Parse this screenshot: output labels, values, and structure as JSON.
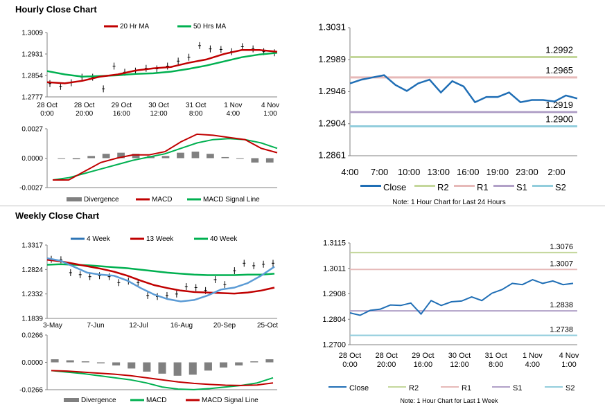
{
  "sections": {
    "hourly_title": "Hourly Close Chart",
    "weekly_title": "Weekly Close Chart"
  },
  "colors": {
    "ma_red": "#c00000",
    "ma_green": "#00b050",
    "close_blue": "#1f6eb5",
    "r2": "#c4d79b",
    "r1": "#e6b9b8",
    "s1": "#b1a0c7",
    "s2": "#92cddc",
    "divergence": "#808080"
  },
  "chart_data": [
    {
      "id": "hourly_price",
      "type": "line",
      "legend": [
        "20 Hr MA",
        "50 Hrs MA"
      ],
      "yticks": [
        "1.3009",
        "1.2931",
        "1.2854",
        "1.2777"
      ],
      "ylim": [
        1.2777,
        1.3009
      ],
      "xticks": [
        [
          "28 Oct",
          "0:00"
        ],
        [
          "28 Oct",
          "20:00"
        ],
        [
          "29 Oct",
          "16:00"
        ],
        [
          "30 Oct",
          "12:00"
        ],
        [
          "31 Oct",
          "8:00"
        ],
        [
          "1 Nov",
          "4:00"
        ],
        [
          "4 Nov",
          "1:00"
        ]
      ],
      "series": [
        {
          "name": "20 Hr MA",
          "values": [
            1.283,
            1.2826,
            1.2835,
            1.285,
            1.2858,
            1.2872,
            1.288,
            1.2885,
            1.29,
            1.2912,
            1.2932,
            1.2946,
            1.2946,
            1.294
          ]
        },
        {
          "name": "50 Hrs MA",
          "values": [
            1.287,
            1.2858,
            1.285,
            1.2852,
            1.2855,
            1.286,
            1.2862,
            1.2868,
            1.2878,
            1.289,
            1.2905,
            1.292,
            1.293,
            1.2936
          ]
        }
      ],
      "price": [
        1.2825,
        1.2815,
        1.2828,
        1.2848,
        1.2848,
        1.2806,
        1.2888,
        1.2866,
        1.287,
        1.288,
        1.2878,
        1.2888,
        1.2906,
        1.292,
        1.2962,
        1.295,
        1.2948,
        1.294,
        1.2958,
        1.295,
        1.294,
        1.2936
      ]
    },
    {
      "id": "hourly_macd",
      "type": "line",
      "legend": [
        "Divergence",
        "MACD",
        "MACD Signal Line"
      ],
      "yticks": [
        "0.0027",
        "0.0000",
        "-0.0027"
      ],
      "ylim": [
        -0.0027,
        0.0027
      ],
      "series": [
        {
          "name": "MACD",
          "values": [
            -0.002,
            -0.002,
            -0.0012,
            -0.0004,
            0.0,
            0.0003,
            0.0003,
            0.0006,
            0.0015,
            0.0022,
            0.0021,
            0.0019,
            0.0017,
            0.0009,
            0.0005
          ]
        },
        {
          "name": "MACD Signal Line",
          "values": [
            -0.002,
            -0.0018,
            -0.0014,
            -0.001,
            -0.0006,
            -0.0002,
            0.0001,
            0.0004,
            0.0009,
            0.0014,
            0.0017,
            0.0018,
            0.0017,
            0.0014,
            0.0009
          ]
        },
        {
          "name": "Divergence",
          "values": [
            0.0,
            -0.0001,
            0.0002,
            0.0004,
            0.0005,
            0.0004,
            0.0002,
            0.0002,
            0.0005,
            0.0006,
            0.0004,
            0.0001,
            0.0,
            -0.0004,
            -0.0004
          ]
        }
      ]
    },
    {
      "id": "hourly_levels",
      "type": "line",
      "yticks": [
        "1.3031",
        "1.2989",
        "1.2946",
        "1.2904",
        "1.2861"
      ],
      "ylim": [
        1.2861,
        1.3031
      ],
      "xticks": [
        "4:00",
        "7:00",
        "10:00",
        "13:00",
        "16:00",
        "19:00",
        "23:00",
        "2:00"
      ],
      "levels": [
        {
          "name": "R2",
          "value": 1.2992,
          "label": "1.2992"
        },
        {
          "name": "R1",
          "value": 1.2965,
          "label": "1.2965"
        },
        {
          "name": "S1",
          "value": 1.2919,
          "label": "1.2919"
        },
        {
          "name": "S2",
          "value": 1.29,
          "label": "1.2900"
        }
      ],
      "series": [
        {
          "name": "Close",
          "values": [
            1.2957,
            1.2962,
            1.2965,
            1.2968,
            1.2955,
            1.2947,
            1.2957,
            1.2962,
            1.2945,
            1.296,
            1.2953,
            1.2932,
            1.2939,
            1.2939,
            1.2945,
            1.2932,
            1.2935,
            1.2935,
            1.2933,
            1.2941,
            1.2937
          ]
        }
      ],
      "legend": [
        "Close",
        "R2",
        "R1",
        "S1",
        "S2"
      ],
      "note": "Note: 1 Hour Chart for Last 24 Hours"
    },
    {
      "id": "weekly_price",
      "type": "line",
      "legend": [
        "4 Week",
        "13 Week",
        "40 Week"
      ],
      "yticks": [
        "1.3317",
        "1.2824",
        "1.2332",
        "1.1839"
      ],
      "ylim": [
        1.1839,
        1.3317
      ],
      "xticks": [
        "3-May",
        "7-Jun",
        "12-Jul",
        "16-Aug",
        "20-Sep",
        "25-Oct"
      ],
      "series": [
        {
          "name": "4 Week",
          "values": [
            1.305,
            1.3,
            1.288,
            1.276,
            1.272,
            1.27,
            1.26,
            1.245,
            1.232,
            1.223,
            1.218,
            1.221,
            1.23,
            1.242,
            1.246,
            1.255,
            1.27,
            1.288
          ]
        },
        {
          "name": "13 Week",
          "values": [
            1.302,
            1.299,
            1.294,
            1.289,
            1.284,
            1.278,
            1.27,
            1.26,
            1.251,
            1.245,
            1.24,
            1.237,
            1.236,
            1.235,
            1.234,
            1.236,
            1.24,
            1.246
          ]
        },
        {
          "name": "40 Week",
          "values": [
            1.292,
            1.293,
            1.292,
            1.291,
            1.289,
            1.287,
            1.285,
            1.282,
            1.279,
            1.276,
            1.274,
            1.272,
            1.271,
            1.271,
            1.271,
            1.272,
            1.272,
            1.274
          ]
        }
      ],
      "price": [
        1.303,
        1.302,
        1.276,
        1.272,
        1.268,
        1.27,
        1.268,
        1.256,
        1.259,
        1.256,
        1.23,
        1.228,
        1.23,
        1.233,
        1.248,
        1.246,
        1.24,
        1.262,
        1.252,
        1.28,
        1.295,
        1.29,
        1.293,
        1.295
      ]
    },
    {
      "id": "weekly_macd",
      "type": "line",
      "legend": [
        "Divergence",
        "MACD",
        "MACD Signal Line"
      ],
      "yticks": [
        "0.0266",
        "0.0000",
        "-0.0266"
      ],
      "ylim": [
        -0.0266,
        0.0266
      ],
      "series": [
        {
          "name": "MACD",
          "values": [
            -0.008,
            -0.0095,
            -0.011,
            -0.013,
            -0.015,
            -0.017,
            -0.02,
            -0.024,
            -0.026,
            -0.0265,
            -0.0255,
            -0.024,
            -0.0225,
            -0.02,
            -0.015
          ]
        },
        {
          "name": "MACD Signal Line",
          "values": [
            -0.008,
            -0.0085,
            -0.0095,
            -0.0105,
            -0.0115,
            -0.013,
            -0.015,
            -0.017,
            -0.019,
            -0.0205,
            -0.0215,
            -0.0222,
            -0.0225,
            -0.022,
            -0.02
          ]
        },
        {
          "name": "Divergence",
          "values": [
            0.003,
            0.002,
            0.001,
            -0.001,
            -0.003,
            -0.006,
            -0.009,
            -0.011,
            -0.013,
            -0.012,
            -0.008,
            -0.005,
            -0.003,
            0.001,
            0.003
          ]
        }
      ]
    },
    {
      "id": "weekly_levels",
      "type": "line",
      "yticks": [
        "1.3115",
        "1.3011",
        "1.2908",
        "1.2804",
        "1.2700"
      ],
      "ylim": [
        1.27,
        1.3115
      ],
      "xticks": [
        [
          "28 Oct",
          "0:00"
        ],
        [
          "28 Oct",
          "20:00"
        ],
        [
          "29 Oct",
          "16:00"
        ],
        [
          "30 Oct",
          "12:00"
        ],
        [
          "31 Oct",
          "8:00"
        ],
        [
          "1 Nov",
          "4:00"
        ],
        [
          "4 Nov",
          "1:00"
        ]
      ],
      "levels": [
        {
          "name": "R2",
          "value": 1.3076,
          "label": "1.3076"
        },
        {
          "name": "R1",
          "value": 1.3007,
          "label": "1.3007"
        },
        {
          "name": "S1",
          "value": 1.2838,
          "label": "1.2838"
        },
        {
          "name": "S2",
          "value": 1.2738,
          "label": "1.2738"
        }
      ],
      "series": [
        {
          "name": "Close",
          "values": [
            1.283,
            1.282,
            1.284,
            1.2845,
            1.2862,
            1.286,
            1.287,
            1.2825,
            1.288,
            1.286,
            1.2875,
            1.2878,
            1.2895,
            1.288,
            1.291,
            1.2925,
            1.295,
            1.2945,
            1.2965,
            1.295,
            1.296,
            1.2945,
            1.295
          ]
        }
      ],
      "legend": [
        "Close",
        "R2",
        "R1",
        "S1",
        "S2"
      ],
      "note": "Note: 1 Hour Chart for Last 1 Week"
    }
  ]
}
